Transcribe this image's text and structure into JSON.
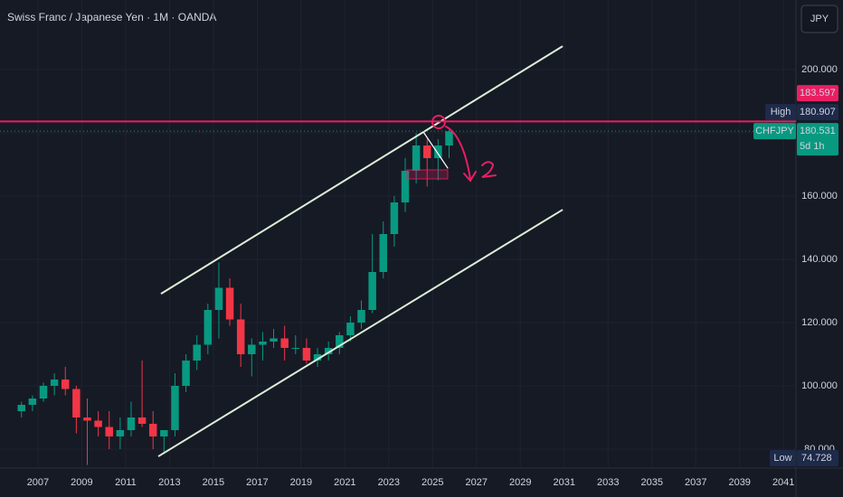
{
  "chart_data": {
    "type": "candlestick",
    "title": "Swiss Franc / Japanese Yen · 1M · OANDA",
    "currency": "JPY",
    "up_color": "#089981",
    "down_color": "#f23645",
    "x": [
      2006.25,
      2006.75,
      2007.25,
      2007.75,
      2008.25,
      2008.75,
      2009.25,
      2009.75,
      2010.25,
      2010.75,
      2011.25,
      2011.75,
      2012.25,
      2012.75,
      2013.25,
      2013.75,
      2014.25,
      2014.75,
      2015.25,
      2015.75,
      2016.25,
      2016.75,
      2017.25,
      2017.75,
      2018.25,
      2018.75,
      2019.25,
      2019.75,
      2020.25,
      2020.75,
      2021.25,
      2021.75,
      2022.25,
      2022.75,
      2023.25,
      2023.75,
      2024.25,
      2024.75,
      2025.25,
      2025.75
    ],
    "open": [
      92,
      94,
      96,
      100,
      102,
      99,
      90,
      89,
      87,
      84,
      86,
      90,
      88,
      84,
      86,
      100,
      108,
      113,
      124,
      131,
      121,
      110,
      113,
      114,
      115,
      112,
      112,
      108,
      110,
      112,
      116,
      120,
      124,
      136,
      148,
      158,
      168,
      176,
      172,
      176
    ],
    "high": [
      95,
      97,
      101,
      104,
      106,
      100,
      96,
      92,
      92,
      90,
      95,
      108,
      92,
      86,
      104,
      110,
      116,
      126,
      139,
      134,
      126,
      115,
      117,
      118,
      119,
      116,
      115,
      112,
      114,
      117,
      122,
      127,
      148,
      152,
      160,
      172,
      180,
      178,
      178,
      181
    ],
    "low": [
      90,
      92,
      95,
      97,
      97,
      85,
      75,
      84,
      80,
      80,
      84,
      87,
      80,
      79,
      84,
      98,
      105,
      110,
      115,
      119,
      106,
      103,
      108,
      112,
      108,
      110,
      107,
      106,
      108,
      110,
      114,
      118,
      123,
      134,
      144,
      155,
      164,
      163,
      165,
      172
    ],
    "close": [
      94,
      96,
      100,
      102,
      99,
      90,
      89,
      87,
      84,
      86,
      90,
      88,
      84,
      86,
      100,
      108,
      113,
      124,
      131,
      121,
      110,
      113,
      114,
      115,
      112,
      112,
      108,
      110,
      112,
      116,
      120,
      124,
      136,
      148,
      158,
      168,
      176,
      172,
      176,
      180.5
    ],
    "xlim": [
      2005.27,
      2041.57
    ],
    "xticks": [
      2007,
      2009,
      2011,
      2013,
      2015,
      2017,
      2019,
      2021,
      2023,
      2025,
      2027,
      2029,
      2031,
      2033,
      2035,
      2037,
      2039,
      2041
    ],
    "ylim": [
      74,
      222
    ],
    "yticks": [
      {
        "value": 80,
        "label": "80.000"
      },
      {
        "value": 100,
        "label": "100.000"
      },
      {
        "value": 120,
        "label": "120.000"
      },
      {
        "value": 140,
        "label": "140.000"
      },
      {
        "value": 160,
        "label": "160.000"
      },
      {
        "value": 180,
        "label": "180.000"
      },
      {
        "value": 200,
        "label": "200.000"
      }
    ],
    "horizontal_line": {
      "value": 183.597,
      "color": "#e91e63"
    },
    "trend_lines": [
      {
        "x": [
          2012.61,
          2030.93
        ],
        "y": [
          129.1,
          207.4
        ],
        "color": "#dcefd6"
      },
      {
        "x": [
          2012.49,
          2030.93
        ],
        "y": [
          77.7,
          155.7
        ],
        "color": "#dcefd6"
      }
    ],
    "price_tags": [
      {
        "name": "CHFJPY",
        "value": 180.531,
        "countdown": "5d 1h",
        "color": "#089981"
      },
      {
        "name": "High",
        "value": 180.907,
        "color": "#1e2a4a"
      }
    ],
    "low_tag": {
      "name": "Low",
      "value": 74.728,
      "color": "#1e2a4a"
    }
  }
}
